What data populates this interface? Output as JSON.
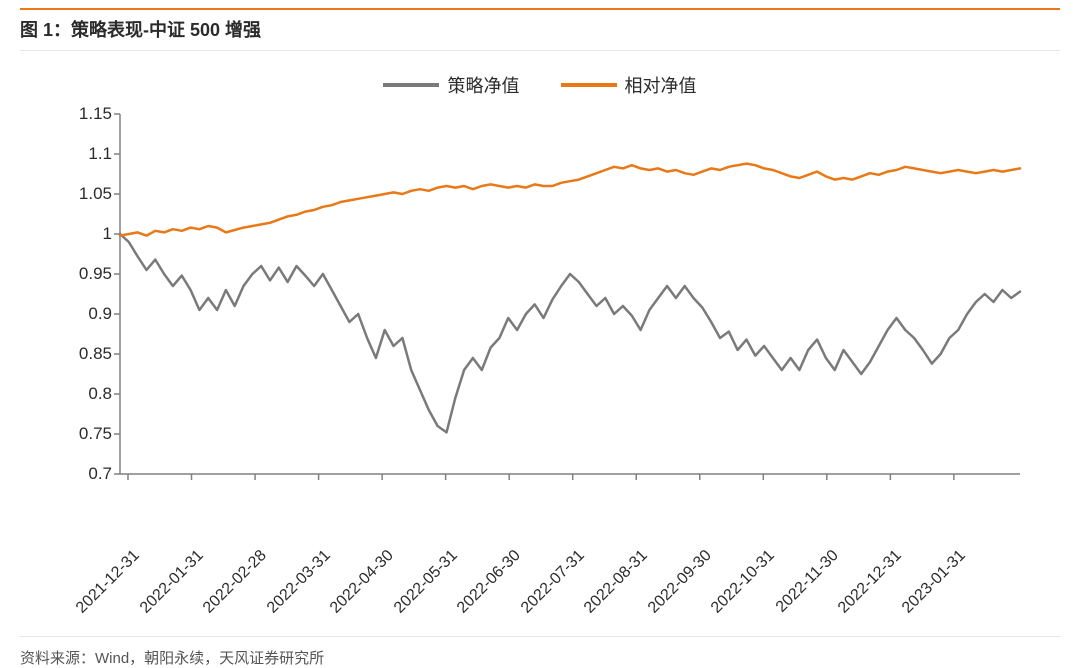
{
  "accent_color": "#e97817",
  "title": "图 1：策略表现-中证 500 增强",
  "source": "资料来源：Wind，朝阳永续，天风证券研究所",
  "legend": [
    {
      "label": "策略净值",
      "color": "#7a7a7a"
    },
    {
      "label": "相对净值",
      "color": "#e97817"
    }
  ],
  "chart": {
    "type": "line",
    "background_color": "#ffffff",
    "axis_color": "#808080",
    "grid": false,
    "line_width": 2.5,
    "ylim": [
      0.7,
      1.15
    ],
    "ytick_step": 0.05,
    "yticks": [
      0.7,
      0.75,
      0.8,
      0.85,
      0.9,
      0.95,
      1,
      1.05,
      1.1,
      1.15
    ],
    "xticks": [
      "2021-12-31",
      "2022-01-31",
      "2022-02-28",
      "2022-03-31",
      "2022-04-30",
      "2022-05-31",
      "2022-06-30",
      "2022-07-31",
      "2022-08-31",
      "2022-09-30",
      "2022-10-31",
      "2022-11-30",
      "2022-12-31",
      "2023-01-31"
    ],
    "series": [
      {
        "name": "策略净值",
        "color": "#7a7a7a",
        "values": [
          1.0,
          0.99,
          0.972,
          0.955,
          0.968,
          0.95,
          0.935,
          0.948,
          0.93,
          0.905,
          0.92,
          0.905,
          0.93,
          0.91,
          0.935,
          0.95,
          0.96,
          0.942,
          0.958,
          0.94,
          0.96,
          0.948,
          0.935,
          0.95,
          0.93,
          0.91,
          0.89,
          0.9,
          0.87,
          0.845,
          0.88,
          0.86,
          0.87,
          0.83,
          0.805,
          0.78,
          0.76,
          0.752,
          0.795,
          0.83,
          0.845,
          0.83,
          0.858,
          0.87,
          0.895,
          0.88,
          0.9,
          0.912,
          0.895,
          0.918,
          0.935,
          0.95,
          0.94,
          0.925,
          0.91,
          0.92,
          0.9,
          0.91,
          0.898,
          0.88,
          0.905,
          0.92,
          0.935,
          0.92,
          0.935,
          0.92,
          0.908,
          0.89,
          0.87,
          0.878,
          0.855,
          0.868,
          0.848,
          0.86,
          0.845,
          0.83,
          0.845,
          0.83,
          0.855,
          0.868,
          0.845,
          0.83,
          0.855,
          0.84,
          0.825,
          0.84,
          0.86,
          0.88,
          0.895,
          0.88,
          0.87,
          0.855,
          0.838,
          0.85,
          0.87,
          0.88,
          0.9,
          0.915,
          0.925,
          0.915,
          0.93,
          0.92,
          0.928
        ]
      },
      {
        "name": "相对净值",
        "color": "#e97817",
        "values": [
          0.998,
          1.0,
          1.002,
          0.998,
          1.004,
          1.002,
          1.006,
          1.004,
          1.008,
          1.006,
          1.01,
          1.008,
          1.002,
          1.005,
          1.008,
          1.01,
          1.012,
          1.014,
          1.018,
          1.022,
          1.024,
          1.028,
          1.03,
          1.034,
          1.036,
          1.04,
          1.042,
          1.044,
          1.046,
          1.048,
          1.05,
          1.052,
          1.05,
          1.054,
          1.056,
          1.054,
          1.058,
          1.06,
          1.058,
          1.06,
          1.056,
          1.06,
          1.062,
          1.06,
          1.058,
          1.06,
          1.058,
          1.062,
          1.06,
          1.06,
          1.064,
          1.066,
          1.068,
          1.072,
          1.076,
          1.08,
          1.084,
          1.082,
          1.086,
          1.082,
          1.08,
          1.082,
          1.078,
          1.08,
          1.076,
          1.074,
          1.078,
          1.082,
          1.08,
          1.084,
          1.086,
          1.088,
          1.086,
          1.082,
          1.08,
          1.076,
          1.072,
          1.07,
          1.074,
          1.078,
          1.072,
          1.068,
          1.07,
          1.068,
          1.072,
          1.076,
          1.074,
          1.078,
          1.08,
          1.084,
          1.082,
          1.08,
          1.078,
          1.076,
          1.078,
          1.08,
          1.078,
          1.076,
          1.078,
          1.08,
          1.078,
          1.08,
          1.082
        ]
      }
    ]
  }
}
